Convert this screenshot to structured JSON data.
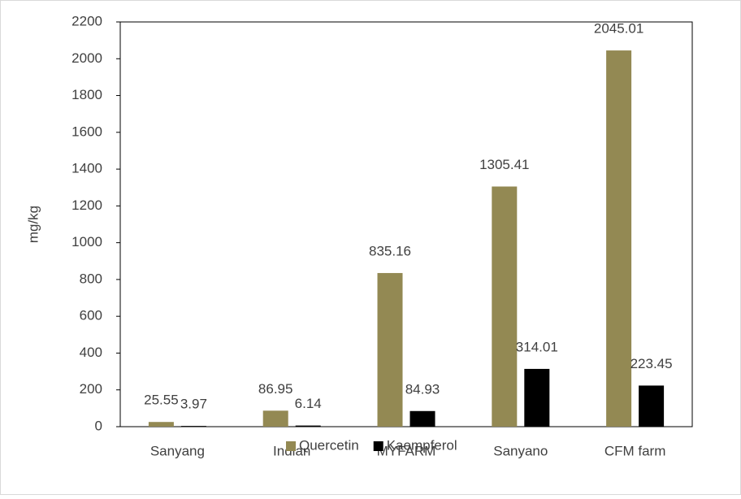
{
  "chart_data": {
    "type": "bar",
    "y_label": "mg/kg",
    "categories": [
      "Sanyang",
      "Indian",
      "MYFARM",
      "Sanyano",
      "CFM farm"
    ],
    "series": [
      {
        "name": "Quercetin",
        "color": "#938953",
        "values": [
          25.55,
          86.95,
          835.16,
          1305.41,
          2045.01
        ]
      },
      {
        "name": "Kaempferol",
        "color": "#000000",
        "values": [
          3.97,
          6.14,
          84.93,
          314.01,
          223.45
        ]
      }
    ],
    "ylim": [
      0,
      2200
    ],
    "yticks": [
      0,
      200,
      400,
      600,
      800,
      1000,
      1200,
      1400,
      1600,
      1800,
      2000,
      2200
    ],
    "legend": "bottom"
  }
}
